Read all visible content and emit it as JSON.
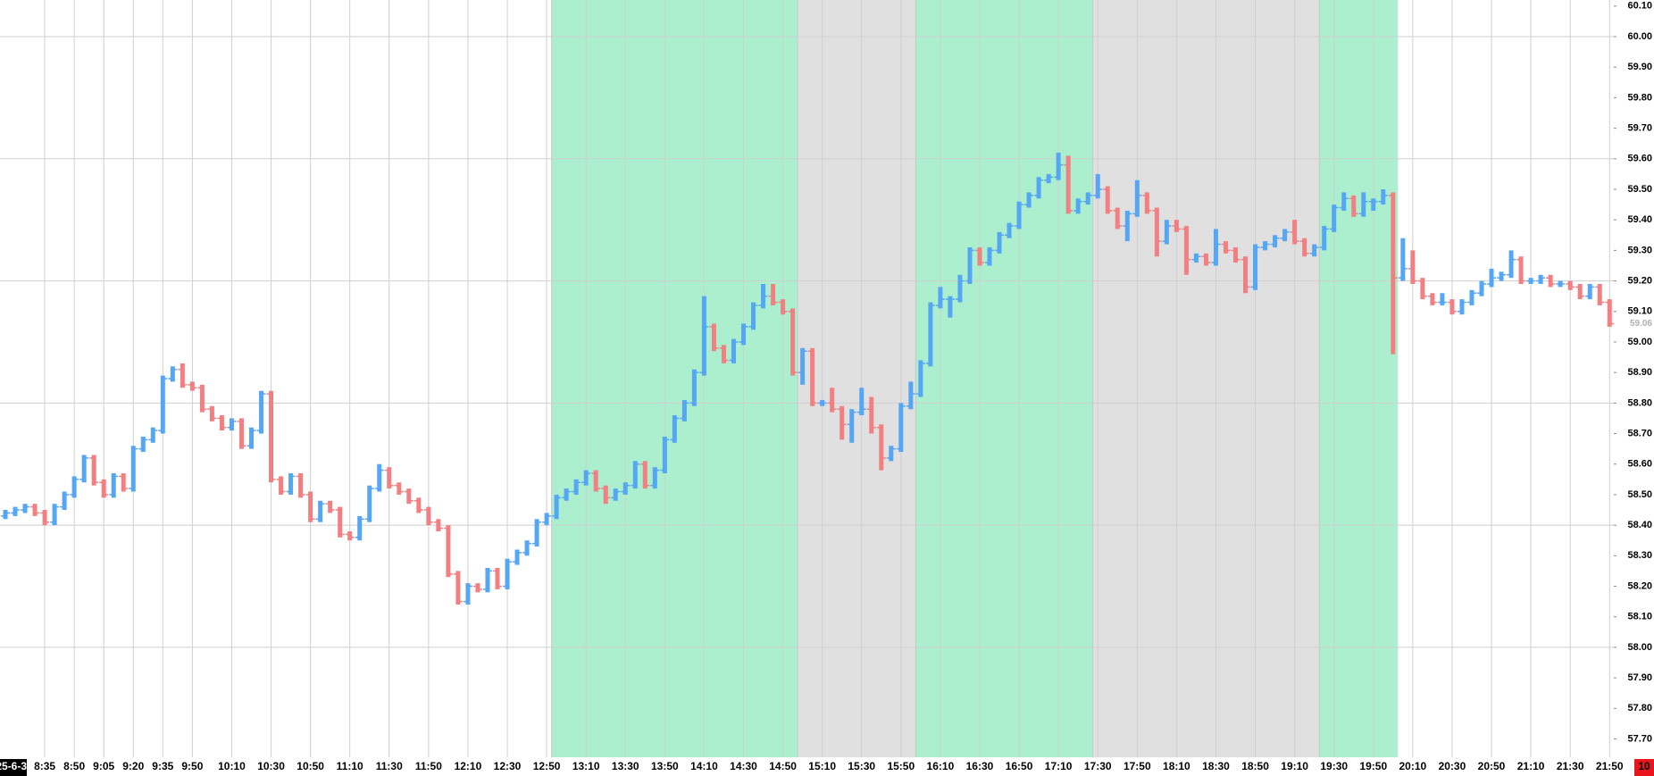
{
  "chart_data": {
    "type": "ohlc",
    "date_label": "25-6-3",
    "counter": "10",
    "categories": [
      null,
      null,
      null,
      null,
      "8:35",
      null,
      null,
      "8:50",
      null,
      null,
      "9:05",
      null,
      null,
      "9:20",
      null,
      null,
      "9:35",
      null,
      null,
      "9:50",
      null,
      null,
      null,
      "10:10",
      null,
      null,
      null,
      "10:30",
      null,
      null,
      null,
      "10:50",
      null,
      null,
      null,
      "11:10",
      null,
      null,
      null,
      "11:30",
      null,
      null,
      null,
      "11:50",
      null,
      null,
      null,
      "12:10",
      null,
      null,
      null,
      "12:30",
      null,
      null,
      null,
      "12:50",
      null,
      null,
      null,
      "13:10",
      null,
      null,
      null,
      "13:30",
      null,
      null,
      null,
      "13:50",
      null,
      null,
      null,
      "14:10",
      null,
      null,
      null,
      "14:30",
      null,
      null,
      null,
      "14:50",
      null,
      null,
      null,
      "15:10",
      null,
      null,
      null,
      "15:30",
      null,
      null,
      null,
      "15:50",
      null,
      null,
      null,
      "16:10",
      null,
      null,
      null,
      "16:30",
      null,
      null,
      null,
      "16:50",
      null,
      null,
      null,
      "17:10",
      null,
      null,
      null,
      "17:30",
      null,
      null,
      null,
      "17:50",
      null,
      null,
      null,
      "18:10",
      null,
      null,
      null,
      "18:30",
      null,
      null,
      null,
      "18:50",
      null,
      null,
      null,
      "19:10",
      null,
      null,
      null,
      "19:30",
      null,
      null,
      null,
      "19:50",
      null,
      null,
      null,
      "20:10",
      null,
      null,
      null,
      "20:30",
      null,
      null,
      null,
      "20:50",
      null,
      null,
      null,
      "21:10",
      null,
      null,
      null,
      "21:30",
      null,
      null,
      null,
      "21:50"
    ],
    "open": [
      58.43,
      58.44,
      58.45,
      58.46,
      58.44,
      58.41,
      58.46,
      58.5,
      58.55,
      58.62,
      58.54,
      58.5,
      58.56,
      58.52,
      58.65,
      58.68,
      58.71,
      58.88,
      58.91,
      58.86,
      58.85,
      58.78,
      58.75,
      58.72,
      58.74,
      58.66,
      58.71,
      58.83,
      58.55,
      58.51,
      58.56,
      58.5,
      58.42,
      58.47,
      58.45,
      58.37,
      58.36,
      58.42,
      58.52,
      58.58,
      58.53,
      58.51,
      58.48,
      58.45,
      58.41,
      58.39,
      58.24,
      58.15,
      58.2,
      58.19,
      58.25,
      58.2,
      58.28,
      58.31,
      58.34,
      58.41,
      58.43,
      58.49,
      58.51,
      58.54,
      58.57,
      58.52,
      58.49,
      58.51,
      58.53,
      58.6,
      58.53,
      58.58,
      58.68,
      58.75,
      58.8,
      58.9,
      59.05,
      58.98,
      58.94,
      59.0,
      59.05,
      59.12,
      59.15,
      59.13,
      59.1,
      58.9,
      58.97,
      58.8,
      58.8,
      58.78,
      58.73,
      58.77,
      58.78,
      58.72,
      58.62,
      58.65,
      58.79,
      58.83,
      58.93,
      59.12,
      59.14,
      59.14,
      59.2,
      59.3,
      59.26,
      59.3,
      59.35,
      59.38,
      59.45,
      59.48,
      59.53,
      59.54,
      59.58,
      59.43,
      59.46,
      59.48,
      59.5,
      59.43,
      59.38,
      59.42,
      59.48,
      59.43,
      59.33,
      59.38,
      59.37,
      59.27,
      59.28,
      59.26,
      59.32,
      59.3,
      59.27,
      59.18,
      59.31,
      59.32,
      59.34,
      59.36,
      59.33,
      59.29,
      59.31,
      59.37,
      59.44,
      59.47,
      59.42,
      59.46,
      59.46,
      59.48,
      59.21,
      59.24,
      59.2,
      59.15,
      59.13,
      59.13,
      59.1,
      59.13,
      59.16,
      59.19,
      59.21,
      59.22,
      59.27,
      59.2,
      59.2,
      59.21,
      59.19,
      59.19,
      59.18,
      59.15,
      59.18,
      59.13
    ],
    "high": [
      58.45,
      58.46,
      58.47,
      58.47,
      58.45,
      58.47,
      58.51,
      58.56,
      58.63,
      58.63,
      58.55,
      58.57,
      58.57,
      58.66,
      58.69,
      58.72,
      58.89,
      58.92,
      58.93,
      58.87,
      58.86,
      58.79,
      58.76,
      58.75,
      58.75,
      58.72,
      58.84,
      58.84,
      58.56,
      58.57,
      58.57,
      58.51,
      58.48,
      58.48,
      58.46,
      58.38,
      58.43,
      58.53,
      58.6,
      58.59,
      58.54,
      58.52,
      58.49,
      58.46,
      58.42,
      58.4,
      58.25,
      58.21,
      58.21,
      58.26,
      58.26,
      58.29,
      58.32,
      58.35,
      58.42,
      58.44,
      58.5,
      58.52,
      58.55,
      58.58,
      58.58,
      58.53,
      58.52,
      58.54,
      58.61,
      58.61,
      58.59,
      58.69,
      58.76,
      58.81,
      58.91,
      59.15,
      59.06,
      58.99,
      59.01,
      59.06,
      59.13,
      59.19,
      59.19,
      59.14,
      59.11,
      58.98,
      58.98,
      58.81,
      58.85,
      58.79,
      58.78,
      58.85,
      58.82,
      58.73,
      58.66,
      58.8,
      58.87,
      58.94,
      59.13,
      59.18,
      59.15,
      59.22,
      59.31,
      59.31,
      59.31,
      59.36,
      59.39,
      59.46,
      59.49,
      59.54,
      59.55,
      59.62,
      59.61,
      59.47,
      59.49,
      59.55,
      59.51,
      59.44,
      59.43,
      59.53,
      59.49,
      59.44,
      59.4,
      59.4,
      59.38,
      59.29,
      59.29,
      59.37,
      59.33,
      59.31,
      59.28,
      59.32,
      59.33,
      59.35,
      59.37,
      59.4,
      59.34,
      59.32,
      59.38,
      59.45,
      59.49,
      59.48,
      59.49,
      59.47,
      59.5,
      59.49,
      59.34,
      59.3,
      59.21,
      59.16,
      59.16,
      59.14,
      59.14,
      59.17,
      59.2,
      59.24,
      59.23,
      59.3,
      59.28,
      59.21,
      59.22,
      59.22,
      59.2,
      59.2,
      59.19,
      59.19,
      59.19,
      59.14
    ],
    "low": [
      58.42,
      58.43,
      58.44,
      58.43,
      58.4,
      58.4,
      58.45,
      58.49,
      58.54,
      58.53,
      58.49,
      58.49,
      58.51,
      58.51,
      58.64,
      58.67,
      58.7,
      58.87,
      58.85,
      58.84,
      58.77,
      58.74,
      58.71,
      58.71,
      58.65,
      58.65,
      58.7,
      58.54,
      58.5,
      58.5,
      58.49,
      58.41,
      58.41,
      58.44,
      58.36,
      58.35,
      58.35,
      58.41,
      58.51,
      58.52,
      58.5,
      58.47,
      58.44,
      58.4,
      58.38,
      58.23,
      58.14,
      58.14,
      58.18,
      58.18,
      58.19,
      58.19,
      58.27,
      58.3,
      58.33,
      58.4,
      58.42,
      58.48,
      58.5,
      58.53,
      58.51,
      58.47,
      58.48,
      58.5,
      58.52,
      58.52,
      58.52,
      58.57,
      58.67,
      58.74,
      58.79,
      58.89,
      58.97,
      58.93,
      58.93,
      58.99,
      59.04,
      59.11,
      59.12,
      59.09,
      58.89,
      58.86,
      58.79,
      58.79,
      58.77,
      58.68,
      58.67,
      58.76,
      58.7,
      58.58,
      58.61,
      58.64,
      58.78,
      58.82,
      58.92,
      59.11,
      59.08,
      59.13,
      59.19,
      59.25,
      59.25,
      59.29,
      59.34,
      59.37,
      59.44,
      59.47,
      59.52,
      59.53,
      59.42,
      59.42,
      59.45,
      59.47,
      59.42,
      59.37,
      59.33,
      59.41,
      59.42,
      59.28,
      59.32,
      59.36,
      59.22,
      59.26,
      59.25,
      59.25,
      59.29,
      59.26,
      59.16,
      59.17,
      59.3,
      59.31,
      59.33,
      59.32,
      59.28,
      59.28,
      59.3,
      59.36,
      59.43,
      59.41,
      59.41,
      59.43,
      59.45,
      58.96,
      59.2,
      59.19,
      59.14,
      59.12,
      59.12,
      59.09,
      59.09,
      59.12,
      59.15,
      59.18,
      59.2,
      59.21,
      59.19,
      59.19,
      59.19,
      59.18,
      59.18,
      59.17,
      59.14,
      59.14,
      59.12,
      59.05
    ],
    "close": [
      58.44,
      58.45,
      58.46,
      58.44,
      58.41,
      58.46,
      58.5,
      58.55,
      58.62,
      58.54,
      58.5,
      58.56,
      58.52,
      58.65,
      58.68,
      58.71,
      58.88,
      58.91,
      58.86,
      58.85,
      58.78,
      58.75,
      58.72,
      58.74,
      58.66,
      58.71,
      58.83,
      58.55,
      58.51,
      58.56,
      58.5,
      58.42,
      58.47,
      58.45,
      58.37,
      58.36,
      58.42,
      58.52,
      58.58,
      58.53,
      58.51,
      58.48,
      58.45,
      58.41,
      58.39,
      58.24,
      58.15,
      58.2,
      58.19,
      58.25,
      58.2,
      58.28,
      58.31,
      58.34,
      58.41,
      58.43,
      58.49,
      58.51,
      58.54,
      58.57,
      58.52,
      58.49,
      58.51,
      58.53,
      58.6,
      58.53,
      58.58,
      58.68,
      58.75,
      58.8,
      58.9,
      59.05,
      58.98,
      58.94,
      59.0,
      59.05,
      59.12,
      59.15,
      59.13,
      59.1,
      58.9,
      58.97,
      58.8,
      58.8,
      58.78,
      58.73,
      58.77,
      58.78,
      58.72,
      58.62,
      58.65,
      58.79,
      58.83,
      58.93,
      59.12,
      59.14,
      59.14,
      59.2,
      59.3,
      59.26,
      59.3,
      59.35,
      59.38,
      59.45,
      59.48,
      59.53,
      59.54,
      59.58,
      59.43,
      59.46,
      59.48,
      59.5,
      59.43,
      59.38,
      59.42,
      59.48,
      59.43,
      59.33,
      59.38,
      59.37,
      59.27,
      59.28,
      59.26,
      59.32,
      59.3,
      59.27,
      59.18,
      59.31,
      59.32,
      59.34,
      59.36,
      59.33,
      59.29,
      59.31,
      59.37,
      59.44,
      59.47,
      59.42,
      59.46,
      59.46,
      59.48,
      59.21,
      59.24,
      59.2,
      59.15,
      59.13,
      59.13,
      59.1,
      59.13,
      59.16,
      59.19,
      59.21,
      59.22,
      59.27,
      59.2,
      59.2,
      59.21,
      59.19,
      59.19,
      59.18,
      59.15,
      59.18,
      59.13,
      59.06
    ],
    "up_color": "#55a6f4",
    "down_color": "#f27f81",
    "ylim": [
      57.64,
      60.12
    ],
    "yticks": [
      {
        "value": 57.7,
        "label": "57.70"
      },
      {
        "value": 57.8,
        "label": "57.80"
      },
      {
        "value": 57.9,
        "label": "57.90"
      },
      {
        "value": 58.0,
        "label": "58.00"
      },
      {
        "value": 58.1,
        "label": "58.10"
      },
      {
        "value": 58.2,
        "label": "58.20"
      },
      {
        "value": 58.3,
        "label": "58.30"
      },
      {
        "value": 58.4,
        "label": "58.40"
      },
      {
        "value": 58.5,
        "label": "58.50"
      },
      {
        "value": 58.6,
        "label": "58.60"
      },
      {
        "value": 58.7,
        "label": "58.70"
      },
      {
        "value": 58.8,
        "label": "58.80"
      },
      {
        "value": 58.9,
        "label": "58.90"
      },
      {
        "value": 59.0,
        "label": "59.00"
      },
      {
        "value": 59.1,
        "label": "59.10"
      },
      {
        "value": 59.2,
        "label": "59.20"
      },
      {
        "value": 59.3,
        "label": "59.30"
      },
      {
        "value": 59.4,
        "label": "59.40"
      },
      {
        "value": 59.5,
        "label": "59.50"
      },
      {
        "value": 59.6,
        "label": "59.60"
      },
      {
        "value": 59.7,
        "label": "59.70"
      },
      {
        "value": 59.8,
        "label": "59.80"
      },
      {
        "value": 59.9,
        "label": "59.90"
      },
      {
        "value": 60.0,
        "label": "60.00"
      },
      {
        "value": 60.1,
        "label": "60.10"
      }
    ],
    "ygrid": [
      58.0,
      58.4,
      58.8,
      59.2,
      59.6,
      60.0
    ],
    "bands": [
      {
        "start": "12:50",
        "end": "14:55",
        "color": "#abefcf"
      },
      {
        "start": "14:55",
        "end": "15:55",
        "color": "#e0e0e0"
      },
      {
        "start": "15:55",
        "end": "17:25",
        "color": "#abefcf"
      },
      {
        "start": "17:25",
        "end": "19:20",
        "color": "#e0e0e0"
      },
      {
        "start": "19:20",
        "end": "20:00",
        "color": "#abefcf"
      }
    ]
  }
}
